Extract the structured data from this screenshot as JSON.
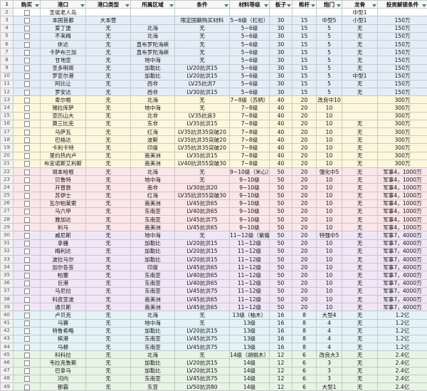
{
  "header": {
    "row": "1",
    "buy": "购买",
    "columns": [
      "港口",
      "港口类型",
      "所属区域",
      "条件",
      "材料等级",
      "板子",
      "桅杆",
      "炮门",
      "龙骨",
      "投资解锁条件"
    ]
  },
  "rows": [
    {
      "n": "2",
      "cells": [
        "圣诞老人岛",
        null,
        null,
        null,
        null,
        null,
        null,
        null,
        "中型1",
        null
      ]
    },
    {
      "n": "3",
      "cells": [
        "本国首都",
        "大本营",
        null,
        "限定国籍购买材料",
        "5~6级（杠松）",
        "30",
        "15",
        "中型5",
        "小型1",
        "150万"
      ]
    },
    {
      "n": "4",
      "cells": [
        "爱丁堡",
        "无",
        "北海",
        "无",
        "5~6级",
        "30",
        "15",
        "5",
        "无",
        "150万"
      ]
    },
    {
      "n": "5",
      "cells": [
        "不来梅",
        "无",
        "北海",
        "无",
        "5~6级",
        "30",
        "15",
        "5",
        "无",
        "150万"
      ]
    },
    {
      "n": "6",
      "cells": [
        "休达",
        "无",
        "直布罗陀海峡",
        "无",
        "5~6级",
        "30",
        "15",
        "5",
        "无",
        "150万"
      ]
    },
    {
      "n": "7",
      "cells": [
        "卡萨布兰加",
        "无",
        "直布罗陀海峡",
        "无",
        "5~6级",
        "30",
        "15",
        "5",
        "无",
        "150万"
      ]
    },
    {
      "n": "8",
      "cells": [
        "甘地亚",
        "无",
        "地中海",
        "无",
        "5~6级",
        "30",
        "15",
        "5",
        "无",
        "150万"
      ]
    },
    {
      "n": "9",
      "cells": [
        "圣多明哥",
        "无",
        "加勒比",
        "LV20抗洪15",
        "5~6级",
        "30",
        "15",
        "5",
        "无",
        "150万"
      ]
    },
    {
      "n": "10",
      "cells": [
        "罗亚尔港",
        "无",
        "加勒比",
        "LV20抗洪15",
        "5~6级",
        "30",
        "15",
        "5",
        "中型1",
        "150万"
      ]
    },
    {
      "n": "11",
      "cells": [
        "阿比让",
        "无",
        "西非",
        "LV25抗洪7",
        "5~6级",
        "30",
        "15",
        "5",
        "无",
        "150万"
      ]
    },
    {
      "n": "12",
      "cells": [
        "罗安达",
        "无",
        "西非",
        "LV30抗洪15",
        "5~6级",
        "30",
        "15",
        "5",
        "无",
        "150万"
      ]
    },
    {
      "n": "13",
      "cells": [
        "卑尔根",
        "无",
        "北海",
        "无",
        "7~8级（苏柄）",
        "40",
        "20",
        "改良中10",
        null,
        "300万"
      ]
    },
    {
      "n": "14",
      "cells": [
        "锡拉库萨",
        "无",
        "地中海",
        "无",
        "7~8级",
        "40",
        "20",
        "10",
        null,
        "300万"
      ]
    },
    {
      "n": "15",
      "cells": [
        "亚历山大",
        "无",
        "北非",
        "LV35抗浪3",
        "7~8级",
        "40",
        "20",
        "10",
        null,
        "300万"
      ]
    },
    {
      "n": "16",
      "cells": [
        "莫三比克",
        "无",
        "东非",
        "LV35抗洪15",
        "7~8级",
        "40",
        "20",
        "10",
        "无",
        "300万"
      ]
    },
    {
      "n": "17",
      "cells": [
        "马萨瓦",
        "无",
        "红海",
        "LV35抗洪35突破20",
        "7~8级",
        "40",
        "20",
        "10",
        "无",
        "300万"
      ]
    },
    {
      "n": "18",
      "cells": [
        "巴格达",
        "无",
        "波斯",
        "LV35抗洪35突破20",
        "7~8级",
        "40",
        "20",
        "10",
        "无",
        "300万"
      ]
    },
    {
      "n": "19",
      "cells": [
        "卡利卡特",
        "无",
        "印度",
        "LV35抗洪35突破20",
        "7~8级",
        "40",
        "20",
        "10",
        "无",
        "300万"
      ]
    },
    {
      "n": "20",
      "cells": [
        "里约热内卢",
        "无",
        "南美洲",
        "LV35抗洪15",
        "7~8级",
        "40",
        "20",
        "10",
        "无",
        "300万"
      ]
    },
    {
      "n": "21",
      "cells": [
        "布宜诺斯艾利斯",
        "无",
        "南美洲",
        "LV40抗洪55突破30",
        "7~8级",
        "40",
        "20",
        "10",
        "无",
        "300万"
      ]
    },
    {
      "n": "22",
      "cells": [
        "哥本哈根",
        "无",
        "北海",
        "无",
        "9~10级（米心）",
        "50",
        "20",
        "强化中5",
        "无",
        "军事4，1000万"
      ]
    },
    {
      "n": "23",
      "cells": [
        "贝鲁特",
        "无",
        "地中海",
        "无",
        "9~10级",
        "50",
        "20",
        "10",
        "无",
        "军事4，1000万"
      ]
    },
    {
      "n": "24",
      "cells": [
        "开普敦",
        "无",
        "南非",
        "LV30抗洪20",
        "9~10级",
        "50",
        "20",
        "10",
        "无",
        "军事4，1000万"
      ]
    },
    {
      "n": "25",
      "cells": [
        "苏伊士",
        "无",
        "红海",
        "LV35抗洪55突破30",
        "9~10级",
        "50",
        "20",
        "10",
        "无",
        "军事4，1000万"
      ]
    },
    {
      "n": "26",
      "cells": [
        "瓦尔帕莱索",
        "无",
        "南美洲",
        "LV45抗洪65",
        "9~10级",
        "50",
        "20",
        "10",
        "无",
        "军事4，1000万"
      ]
    },
    {
      "n": "27",
      "cells": [
        "马六甲",
        "无",
        "东南亚",
        "LV40抗洪65",
        "9~10级",
        "50",
        "20",
        "10",
        "无",
        "军事4，1000万"
      ]
    },
    {
      "n": "28",
      "cells": [
        "雅加达",
        "无",
        "东南亚",
        "LV45抗洪75",
        "9~10级",
        "50",
        "20",
        "10",
        "无",
        "军事4，1000万"
      ]
    },
    {
      "n": "29",
      "cells": [
        "利马",
        "无",
        "南美洲",
        "LV45抗洪65",
        "9~10级",
        "50",
        "20",
        "10",
        "无",
        "军事4，1000万"
      ]
    },
    {
      "n": "30",
      "cells": [
        "威尼斯",
        "无",
        "地中海",
        "无",
        "11~12级（紫檀）",
        "50",
        "20",
        "特强中5",
        "无",
        "军事7，4000万"
      ]
    },
    {
      "n": "31",
      "cells": [
        "拿骚",
        "无",
        "加勒比",
        "LV20抗洪15",
        "11~12级",
        "50",
        "20",
        "10",
        "无",
        "军事7，4000万"
      ]
    },
    {
      "n": "32",
      "cells": [
        "梅利达",
        "无",
        "加勒比",
        "LV20抗洪15",
        "11~12级",
        "50",
        "20",
        "10",
        "无",
        "军事7，4000万"
      ]
    },
    {
      "n": "33",
      "cells": [
        "波拉马尔",
        "无",
        "加勒比",
        "LV20抗洪15",
        "11~12级",
        "50",
        "20",
        "10",
        "无",
        "军事7，4000万"
      ]
    },
    {
      "n": "34",
      "cells": [
        "加尔各答",
        "无",
        "印度",
        "LV45抗洪65",
        "11~12级",
        "50",
        "20",
        "10",
        "无",
        "军事7，4000万"
      ]
    },
    {
      "n": "35",
      "cells": [
        "帕塞",
        "无",
        "东南亚",
        "LV40抗洪65",
        "11~12级",
        "50",
        "20",
        "10",
        "无",
        "军事7，4000万"
      ]
    },
    {
      "n": "36",
      "cells": [
        "巨港",
        "无",
        "东南亚",
        "LV40抗洪65",
        "11~12级",
        "50",
        "20",
        "10",
        "无",
        "军事7，4000万"
      ]
    },
    {
      "n": "37",
      "cells": [
        "马尼拉",
        "无",
        "东南亚",
        "LV45抗洪75",
        "11~12级",
        "50",
        "20",
        "10",
        "无",
        "军事7，4000万"
      ]
    },
    {
      "n": "38",
      "cells": [
        "科皮亚波",
        "无",
        "南美洲",
        "LV45抗洪65",
        "11~12级",
        "50",
        "20",
        "10",
        "无",
        "军事7，4000万"
      ]
    },
    {
      "n": "39",
      "cells": [
        "通贝斯",
        "无",
        "南美洲",
        "LV45抗洪65",
        "11~12级",
        "50",
        "20",
        "10",
        "无",
        "军事7，4000万"
      ]
    },
    {
      "n": "40",
      "cells": [
        "卢贝克",
        "无",
        "北海",
        "无",
        "13级（柚木）",
        "16",
        "8",
        "大型4",
        "无",
        "1.2亿"
      ]
    },
    {
      "n": "41",
      "cells": [
        "马赛",
        "无",
        "地中海",
        "无",
        "13级",
        "16",
        "8",
        "4",
        "无",
        "1.2亿"
      ]
    },
    {
      "n": "42",
      "cells": [
        "特鲁希略",
        "无",
        "加勒比",
        "LV20抗洪15",
        "13级",
        "16",
        "8",
        "4",
        "无",
        "1.2亿"
      ]
    },
    {
      "n": "43",
      "cells": [
        "槟港",
        "无",
        "东南亚",
        "LV45抗洪75",
        "13级",
        "16",
        "8",
        "4",
        "无",
        "1.2亿"
      ]
    },
    {
      "n": "44",
      "cells": [
        "马穆",
        "无",
        "东南亚",
        "LV45抗洪75",
        "13级",
        "16",
        "8",
        "4",
        "无",
        "1.2亿"
      ]
    },
    {
      "n": "45",
      "cells": [
        "科科拉",
        "无",
        "北海",
        "无",
        "14级（胡桃木）",
        "12",
        "6",
        "改良大3",
        "无",
        "2.4亿"
      ]
    },
    {
      "n": "46",
      "cells": [
        "韦拉克鲁斯",
        "无",
        "加勒比",
        "LV20抗洪15",
        "14级",
        "12",
        "6",
        "3",
        "无",
        "2.4亿"
      ]
    },
    {
      "n": "47",
      "cells": [
        "巴拿马",
        "无",
        "加勒比",
        "LV20抗洪15",
        "14级",
        "12",
        "6",
        "3",
        "无",
        "2.4亿"
      ]
    },
    {
      "n": "48",
      "cells": [
        "河内",
        "无",
        "东南亚",
        "LV45抗洪75",
        "14级",
        "12",
        "6",
        "3",
        "无",
        "2.4亿"
      ]
    },
    {
      "n": "49",
      "cells": [
        "那霸",
        "无",
        "东亚",
        "LV50抗洪80",
        "14级",
        "12",
        "6",
        "大型1",
        "无",
        "2.4亿"
      ]
    }
  ]
}
